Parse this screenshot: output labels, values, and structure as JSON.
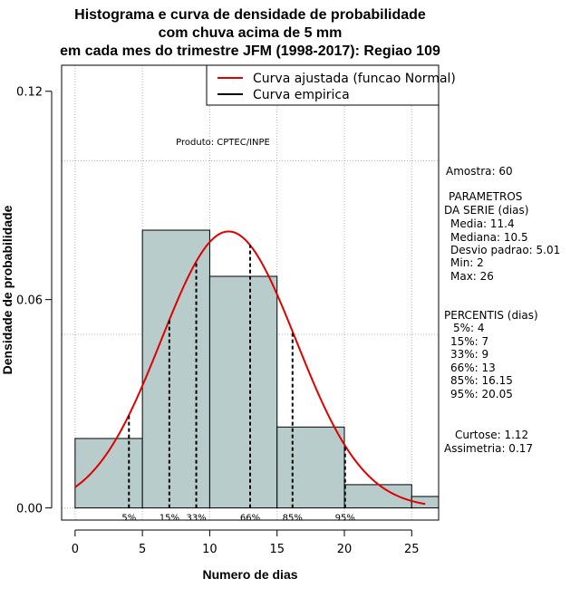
{
  "chart_data": {
    "type": "bar",
    "title_lines": [
      "Histograma e curva de densidade de probabilidade",
      "com chuva acima de 5 mm",
      "em cada mes do trimestre JFM (1998-2017): Regiao 109"
    ],
    "xlabel": "Numero de dias",
    "ylabel": "Densidade de probabilidade",
    "xlim": [
      -1,
      27
    ],
    "ylim": [
      -0.0035,
      0.1275
    ],
    "x_ticks": [
      0,
      5,
      10,
      15,
      20,
      25
    ],
    "y_ticks": [
      0.0,
      0.06,
      0.12
    ],
    "y_tick_labels": [
      "0.00",
      "0.06",
      "0.12"
    ],
    "grid_x": [
      0,
      5,
      10,
      15,
      20,
      25
    ],
    "grid_y": [
      0.0,
      0.05,
      0.1
    ],
    "grid": true,
    "bins": [
      {
        "x0": 0,
        "x1": 5,
        "density": 0.02
      },
      {
        "x0": 5,
        "x1": 10,
        "density": 0.08
      },
      {
        "x0": 10,
        "x1": 15,
        "density": 0.0667
      },
      {
        "x0": 15,
        "x1": 20,
        "density": 0.0233
      },
      {
        "x0": 20,
        "x1": 25,
        "density": 0.0067
      },
      {
        "x0": 25,
        "x1": 27,
        "density": 0.0033
      }
    ],
    "bar_color": "#b8cccc",
    "normal_fit": {
      "mean": 11.4,
      "sd": 5.01,
      "x_range": [
        0,
        26
      ],
      "color": "#e00000"
    },
    "percentile_lines": [
      {
        "x": 4,
        "label": "5%"
      },
      {
        "x": 7,
        "label": "15%"
      },
      {
        "x": 9,
        "label": "33%"
      },
      {
        "x": 13,
        "label": "66%"
      },
      {
        "x": 16.15,
        "label": "85%"
      },
      {
        "x": 20.05,
        "label": "95%"
      }
    ],
    "legend": {
      "position": "top-right",
      "entries": [
        {
          "label": "Curva ajustada (funcao Normal)",
          "color": "#e00000"
        },
        {
          "label": "Curva empirica",
          "color": "#000000"
        }
      ]
    },
    "annotation": "Produto: CPTEC/INPE"
  },
  "stats_panel": {
    "amostra": "Amostra: 60",
    "param_title_1": "PARAMETROS",
    "param_title_2": "DA SERIE (dias)",
    "media": "Media: 11.4",
    "mediana": "Mediana: 10.5",
    "desvio": "Desvio padrao: 5.01",
    "min": "Min: 2",
    "max": "Max: 26",
    "perc_title": "PERCENTIS (dias)",
    "p5": "5%: 4",
    "p15": "15%: 7",
    "p33": "33%: 9",
    "p66": "66%: 13",
    "p85": "85%: 16.15",
    "p95": "95%: 20.05",
    "curtose": "Curtose: 1.12",
    "assimetria": "Assimetria: 0.17"
  }
}
